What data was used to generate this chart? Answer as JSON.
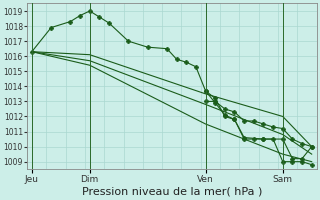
{
  "background_color": "#cceee8",
  "grid_color": "#aad8d0",
  "line_color": "#1a5c1a",
  "ylim": [
    1008.5,
    1019.5
  ],
  "yticks": [
    1009,
    1010,
    1011,
    1012,
    1013,
    1014,
    1015,
    1016,
    1017,
    1018,
    1019
  ],
  "xlabel": "Pression niveau de la mer( hPa )",
  "xlabel_fontsize": 8,
  "day_labels": [
    "Jeu",
    "Dim",
    "Ven",
    "Sam"
  ],
  "day_positions": [
    0,
    24,
    72,
    104
  ],
  "xlim": [
    -2,
    118
  ],
  "lines": [
    {
      "x": [
        0,
        8,
        16,
        20,
        24,
        28,
        32,
        40,
        48,
        56,
        60,
        64,
        68,
        72,
        76,
        80,
        84,
        88,
        96,
        104,
        108,
        112,
        116
      ],
      "y": [
        1016.3,
        1017.9,
        1018.3,
        1018.7,
        1019.0,
        1018.6,
        1018.2,
        1017.0,
        1016.6,
        1016.5,
        1015.8,
        1015.6,
        1015.3,
        1013.7,
        1012.9,
        1012.1,
        1011.8,
        1010.6,
        1010.5,
        1010.5,
        1009.2,
        1009.2,
        1010.0
      ],
      "marker": "P",
      "markersize": 3.0
    },
    {
      "x": [
        0,
        24,
        72,
        104,
        116
      ],
      "y": [
        1016.3,
        1016.1,
        1013.5,
        1012.0,
        1010.0
      ],
      "marker": null,
      "markersize": 0
    },
    {
      "x": [
        0,
        24,
        72,
        104,
        116
      ],
      "y": [
        1016.3,
        1015.7,
        1012.8,
        1010.8,
        1009.5
      ],
      "marker": null,
      "markersize": 0
    },
    {
      "x": [
        0,
        24,
        72,
        104,
        116
      ],
      "y": [
        1016.3,
        1015.4,
        1011.5,
        1009.5,
        1009.0
      ],
      "marker": null,
      "markersize": 0
    },
    {
      "x": [
        72,
        76,
        80,
        84,
        88,
        92,
        96,
        100,
        104,
        108,
        112,
        116
      ],
      "y": [
        1013.7,
        1013.2,
        1012.0,
        1011.8,
        1010.5,
        1010.5,
        1010.5,
        1010.5,
        1009.0,
        1009.0,
        1009.0,
        1008.8
      ],
      "marker": "P",
      "markersize": 3.0
    },
    {
      "x": [
        72,
        76,
        80,
        84,
        88,
        92,
        96,
        100,
        104,
        108,
        112,
        116
      ],
      "y": [
        1013.0,
        1013.0,
        1012.5,
        1012.3,
        1011.7,
        1011.7,
        1011.5,
        1011.3,
        1011.2,
        1010.5,
        1010.2,
        1010.0
      ],
      "marker": "P",
      "markersize": 3.0
    }
  ]
}
